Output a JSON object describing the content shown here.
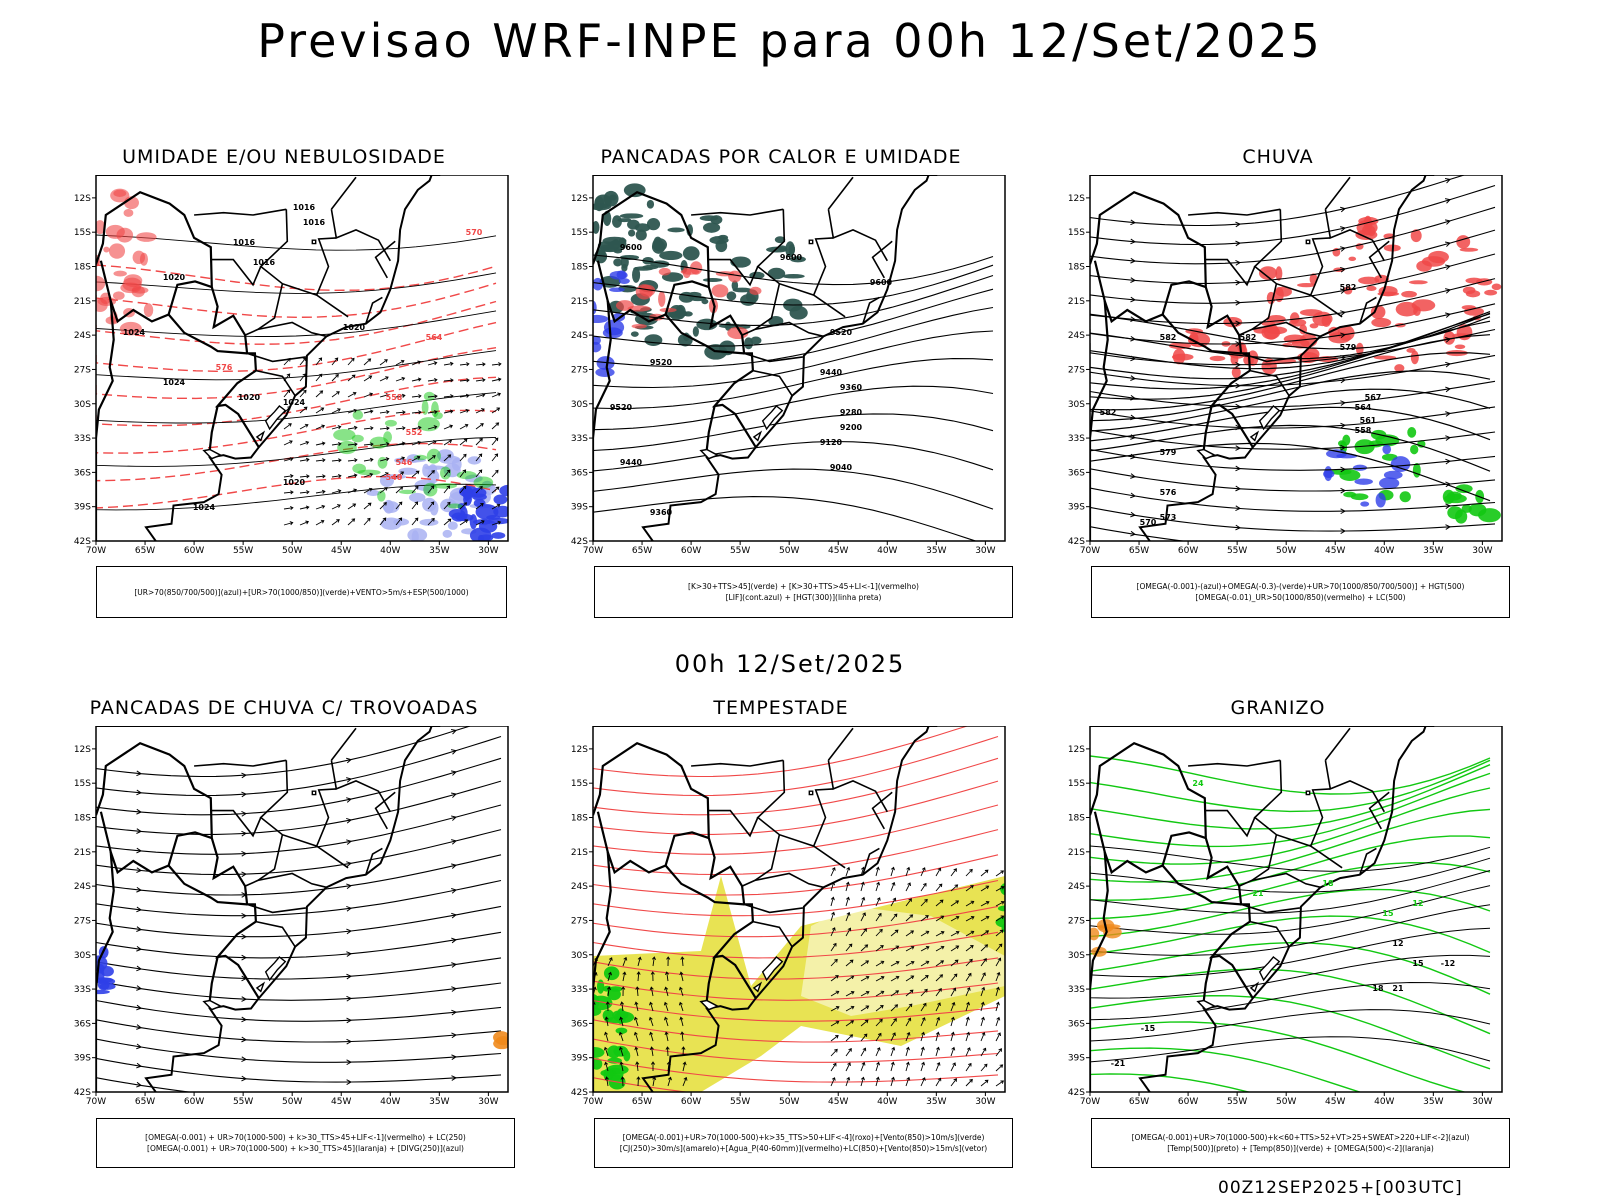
{
  "title": "Previsao WRF-INPE  para 00h 12/Set/2025",
  "middle_date": "00h 12/Set/2025",
  "timestamp": "00Z12SEP2025+[003UTC]",
  "lat_labels": [
    "12S",
    "15S",
    "18S",
    "21S",
    "24S",
    "27S",
    "30S",
    "33S",
    "36S",
    "39S",
    "42S"
  ],
  "lon_labels": [
    "70W",
    "65W",
    "60W",
    "55W",
    "50W",
    "45W",
    "40W",
    "35W",
    "30W"
  ],
  "panels": [
    {
      "title": "UMIDADE E/OU NEBULOSIDADE",
      "legend": [
        "[UR>70(850/700/500)](azul)+[UR>70(1000/850)](verde)+VENTO>5m/s+ESP(500/1000)"
      ],
      "contour_labels": [
        "1016",
        "1016",
        "1016",
        "1016",
        "1020",
        "1020",
        "1020",
        "1020",
        "1024",
        "1024",
        "1024",
        "1024",
        "570",
        "576",
        "564",
        "558",
        "552",
        "546",
        "540"
      ]
    },
    {
      "title": "PANCADAS POR CALOR E UMIDADE",
      "legend": [
        "[K>30+TTS>45](verde) + [K>30+TTS>45+LI<-1](vermelho)",
        "[LIF](cont.azul) + [HGT(300)](linha preta)"
      ],
      "contour_labels": [
        "9600",
        "9600",
        "9600",
        "9520",
        "9520",
        "9520",
        "9440",
        "9440",
        "9360",
        "9360",
        "9280",
        "9200",
        "9120",
        "9040"
      ]
    },
    {
      "title": "CHUVA",
      "legend": [
        "[OMEGA(-0.001)-(azul)+OMEGA(-0.3)-(verde)+UR>70(1000/850/700/500)] + HGT(500)",
        "[OMEGA(-0.01)_UR>50(1000/850)(vermelho) + LC(500)"
      ],
      "contour_labels": [
        "582",
        "582",
        "582",
        "582",
        "579",
        "579",
        "576",
        "573",
        "570",
        "567",
        "564",
        "561",
        "558"
      ]
    },
    {
      "title": "PANCADAS DE CHUVA C/ TROVOADAS",
      "legend": [
        "[OMEGA(-0.001) + UR>70(1000-500) + k>30_TTS>45+LIF<-1](vermelho) + LC(250)",
        "[OMEGA(-0.001) + UR>70(1000-500) + k>30_TTS>45](laranja) + [DIVG(250)](azul)"
      ],
      "contour_labels": []
    },
    {
      "title": "TEMPESTADE",
      "legend": [
        "[OMEGA(-0.001)+UR>70(1000-500)+k>35_TTS>50+LIF<-4](roxo)+[Vento(850)>10m/s](verde)",
        "[CJ(250)>30m/s](amarelo)+[Agua_P(40-60mm)](vermelho)+LC(850)+[Vento(850)>15m/s](vetor)"
      ],
      "contour_labels": []
    },
    {
      "title": "GRANIZO",
      "legend": [
        "[OMEGA(-0.001)+UR>70(1000-500)+k<60+TTS>52+VT>25+SWEAT>220+LIF<-2](azul)",
        "[Temp(500)](preto) + [Temp(850)](verde) + [OMEGA(500)<-2](laranja)"
      ],
      "contour_labels": [
        "24",
        "21",
        "18",
        "15",
        "12",
        "12",
        "15",
        "18",
        "21",
        "-12",
        "-15",
        "-21"
      ]
    }
  ],
  "colors": {
    "blue_humidity": "#2f3fe8",
    "lavender": "#a9b2f2",
    "green": "#12c812",
    "red": "#f04848",
    "dark_teal": "#2e5650",
    "yellow": "#e6e040",
    "orange": "#f08a1c"
  }
}
